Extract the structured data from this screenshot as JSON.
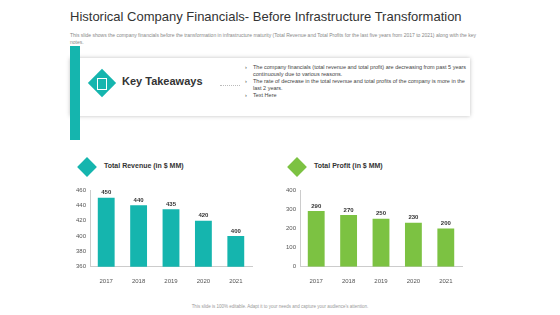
{
  "header": {
    "title": "Historical Company Financials- Before Infrastructure Transformation",
    "subtitle": "This slide shows the company financials before the transformation in infrastructure maturity (Total Revenue and Total Profits for the last five years from 2017 to 2021) along with the key notes."
  },
  "key_takeaways": {
    "title": "Key Takeaways",
    "items": [
      "The company financials (total revenue and total profit) are decreasing from past 5 years continuously due to various reasons.",
      "The rate of decrease in the total revenue and total profits of the company is more in the last 2 years.",
      "Text Here"
    ]
  },
  "chart_data": [
    {
      "type": "bar",
      "title": "Total Revenue (in $ MM)",
      "categories": [
        "2017",
        "2018",
        "2019",
        "2020",
        "2021"
      ],
      "values": [
        450,
        440,
        435,
        420,
        400
      ],
      "color": "#15b5ae",
      "ylim": [
        360,
        460
      ],
      "yticks": [
        360,
        380,
        400,
        420,
        440,
        460
      ],
      "grid": false,
      "data_labels": true
    },
    {
      "type": "bar",
      "title": "Total Profit (in $ MM)",
      "categories": [
        "2017",
        "2018",
        "2019",
        "2020",
        "2021"
      ],
      "values": [
        290,
        270,
        250,
        230,
        200
      ],
      "color": "#7cc242",
      "ylim": [
        0,
        400
      ],
      "yticks": [
        0,
        100,
        200,
        300,
        400
      ],
      "grid": false,
      "data_labels": true
    }
  ],
  "footer": "This slide is 100% editable. Adapt it to your needs and capture your audience's attention."
}
